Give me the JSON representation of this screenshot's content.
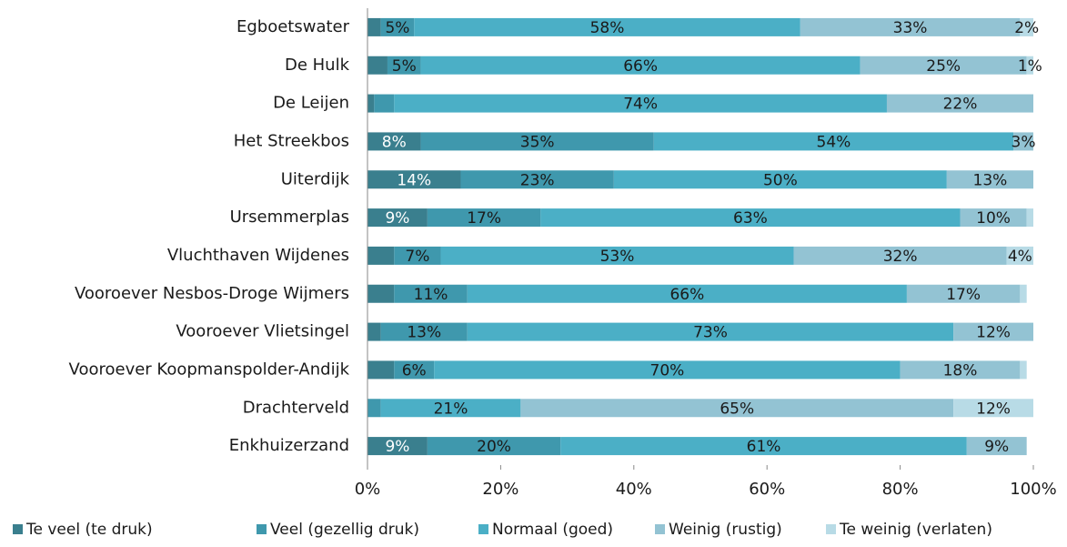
{
  "chart_data": {
    "type": "stacked_barh",
    "categories": [
      "Egboetswater",
      "De Hulk",
      "De Leijen",
      "Het Streekbos",
      "Uiterdijk",
      "Ursemmerplas",
      "Vluchthaven Wijdenes",
      "Vooroever Nesbos-Droge Wijmers",
      "Vooroever Vlietsingel",
      "Vooroever Koopmanspolder-Andijk",
      "Drachterveld",
      "Enkhuizerzand"
    ],
    "series": [
      {
        "name": "Te veel (te druk)",
        "color": "#3a7f8e",
        "values": [
          2,
          3,
          1,
          8,
          14,
          9,
          4,
          4,
          2,
          4,
          0,
          9
        ],
        "value_labels": [
          null,
          null,
          null,
          "8%",
          "14%",
          "9%",
          null,
          null,
          null,
          null,
          null,
          "9%"
        ]
      },
      {
        "name": "Veel (gezellig druk)",
        "color": "#3f98ad",
        "values": [
          5,
          5,
          3,
          35,
          23,
          17,
          7,
          11,
          13,
          6,
          2,
          20
        ],
        "value_labels": [
          "5%",
          "5%",
          null,
          "35%",
          "23%",
          "17%",
          "7%",
          "11%",
          "13%",
          "6%",
          null,
          "20%"
        ]
      },
      {
        "name": "Normaal (goed)",
        "color": "#4bafc6",
        "values": [
          58,
          66,
          74,
          54,
          50,
          63,
          53,
          66,
          73,
          70,
          21,
          61
        ],
        "value_labels": [
          "58%",
          "66%",
          "74%",
          "54%",
          "50%",
          "63%",
          "53%",
          "66%",
          "73%",
          "70%",
          "21%",
          "61%"
        ]
      },
      {
        "name": "Weinig (rustig)",
        "color": "#93c3d3",
        "values": [
          33,
          25,
          22,
          3,
          13,
          10,
          32,
          17,
          12,
          18,
          65,
          9
        ],
        "value_labels": [
          "33%",
          "25%",
          "22%",
          "3%",
          "13%",
          "10%",
          "32%",
          "17%",
          "12%",
          "18%",
          "65%",
          "9%"
        ]
      },
      {
        "name": "Te weinig (verlaten)",
        "color": "#b8dbe6",
        "values": [
          2,
          1,
          0,
          0,
          0,
          1,
          4,
          1,
          0,
          1,
          12,
          0
        ],
        "value_labels": [
          "2%",
          "1%",
          null,
          null,
          null,
          null,
          "4%",
          null,
          null,
          null,
          "12%",
          null
        ]
      }
    ],
    "xlim": [
      0,
      100
    ],
    "xticks": [
      {
        "value": 0,
        "label": "0%"
      },
      {
        "value": 20,
        "label": "20%"
      },
      {
        "value": 40,
        "label": "40%"
      },
      {
        "value": 60,
        "label": "60%"
      },
      {
        "value": 80,
        "label": "80%"
      },
      {
        "value": 100,
        "label": "100%"
      }
    ],
    "legend": "bottom"
  }
}
